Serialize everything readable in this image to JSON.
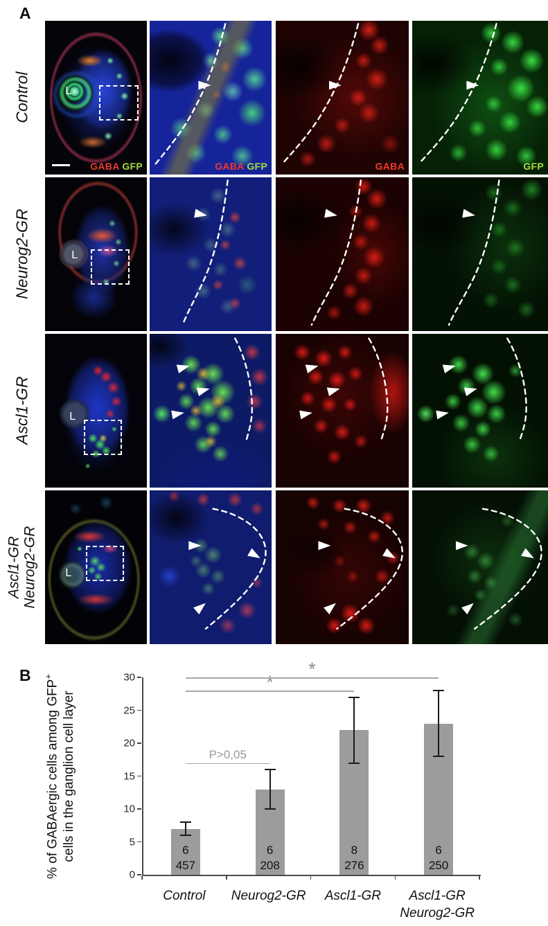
{
  "panel_a": {
    "letter": "A",
    "lens_label": "L",
    "channels": {
      "gaba": "GABA",
      "gfp": "GFP"
    },
    "rows": [
      {
        "label": "Control"
      },
      {
        "label": "Neurog2-GR"
      },
      {
        "label": "Ascl1-GR"
      },
      {
        "label": "Ascl1-GR",
        "label2": "Neurog2-GR"
      }
    ]
  },
  "panel_b": {
    "letter": "B"
  },
  "chart_data": {
    "type": "bar",
    "categories": [
      "Control",
      "Neurog2-GR",
      "Ascl1-GR",
      "Ascl1-GR\nNeurog2-GR"
    ],
    "values": [
      7,
      13,
      22,
      23
    ],
    "errors": [
      1,
      3,
      5,
      5
    ],
    "bar_labels": [
      [
        "6",
        "457"
      ],
      [
        "6",
        "208"
      ],
      [
        "8",
        "276"
      ],
      [
        "6",
        "250"
      ]
    ],
    "ylabel_line1": "% of GABAergic cells among GFP",
    "ylabel_sup": "+",
    "ylabel_line2": "cells in the ganglion cell layer",
    "ylim": [
      0,
      30
    ],
    "ytick_step": 5,
    "grid": false,
    "legend_position": "none",
    "bar_color": "#9c9c9c",
    "annotations": [
      {
        "from": 0,
        "to": 1,
        "y": 17,
        "label": "P>0,05"
      },
      {
        "from": 0,
        "to": 2,
        "y": 28,
        "label": "*"
      },
      {
        "from": 0,
        "to": 3,
        "y": 30,
        "label": "*"
      }
    ]
  }
}
